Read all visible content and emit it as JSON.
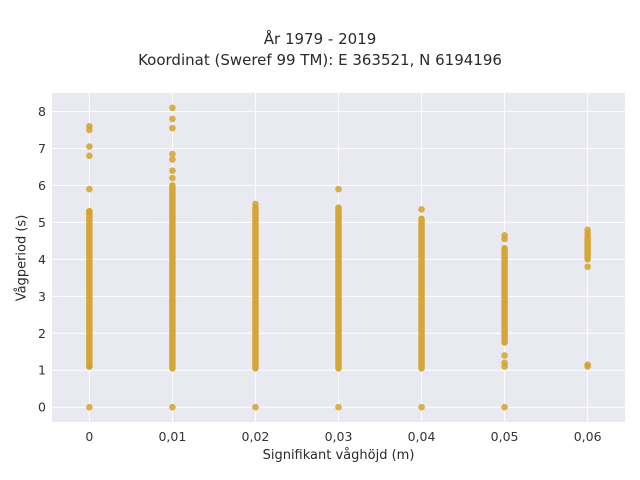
{
  "chart_data": {
    "type": "scatter",
    "title": "År 1979 - 2019",
    "subtitle": "Koordinat (Sweref 99 TM): E 363521, N 6194196",
    "xlabel": "Signifikant våghöjd (m)",
    "ylabel": "Vågperiod (s)",
    "x_ticks": [
      "0",
      "0,01",
      "0,02",
      "0,03",
      "0,04",
      "0,05",
      "0,06"
    ],
    "y_ticks": [
      "0",
      "1",
      "2",
      "3",
      "4",
      "5",
      "6",
      "7",
      "8"
    ],
    "xlim": [
      -0.0045,
      0.0645
    ],
    "ylim": [
      -0.4,
      8.5
    ],
    "grid": true,
    "marker_color": "#d4a22a",
    "plot_bg": "#e9e9f1",
    "columns": [
      {
        "x": 0.0,
        "range": [
          1.1,
          5.3
        ],
        "points": [
          0,
          1.1,
          5.3,
          5.9,
          6.8,
          7.05,
          7.5,
          7.6
        ]
      },
      {
        "x": 0.01,
        "range": [
          1.05,
          6.0
        ],
        "points": [
          0,
          6.2,
          6.4,
          6.7,
          6.85,
          7.55,
          7.8,
          8.1
        ]
      },
      {
        "x": 0.02,
        "range": [
          1.05,
          5.4
        ],
        "points": [
          0,
          5.5
        ]
      },
      {
        "x": 0.03,
        "range": [
          1.05,
          5.4
        ],
        "points": [
          0,
          5.9
        ]
      },
      {
        "x": 0.04,
        "range": [
          1.05,
          5.1
        ],
        "points": [
          0,
          5.35
        ]
      },
      {
        "x": 0.05,
        "range": [
          1.75,
          4.3
        ],
        "points": [
          0,
          1.1,
          1.2,
          1.4,
          4.55,
          4.65
        ]
      },
      {
        "x": 0.06,
        "range": [
          4.0,
          4.6
        ],
        "points": [
          1.1,
          1.15,
          3.8,
          4.7,
          4.8
        ]
      }
    ]
  }
}
